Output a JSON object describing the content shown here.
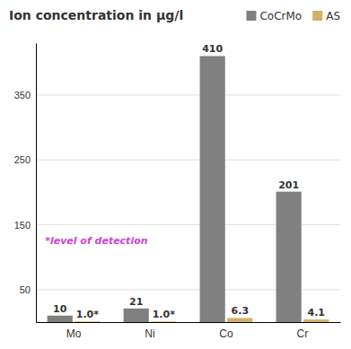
{
  "chart_data": {
    "type": "bar",
    "title": "Ion concentration in μg/l",
    "categories": [
      "Mo",
      "Ni",
      "Co",
      "Cr"
    ],
    "series": [
      {
        "name": "CoCrMo",
        "color": "#808080",
        "values": [
          10,
          21,
          410,
          201
        ]
      },
      {
        "name": "AS",
        "color": "#d4b06a",
        "values": [
          1.0,
          1.0,
          6.3,
          4.1
        ],
        "value_labels": [
          "1.0*",
          "1.0*",
          "6.3",
          "4.1"
        ]
      }
    ],
    "annotations": [
      {
        "text": "*level of detection",
        "color": "#cc44cc"
      }
    ],
    "ylim": [
      0,
      430
    ],
    "yticks": [
      50,
      150,
      250,
      350
    ],
    "grid": true,
    "legend": "upper right",
    "data_labels": true
  }
}
